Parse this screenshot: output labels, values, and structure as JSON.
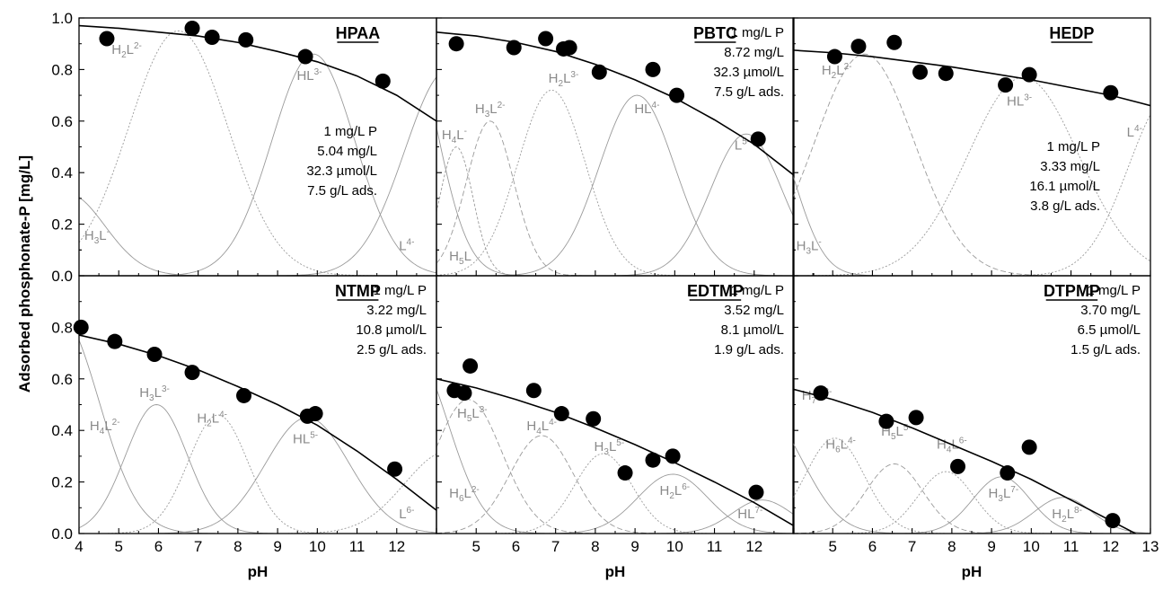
{
  "ylabel": "Adsorbed phosphonate-P [mg/L]",
  "xlabel": "pH",
  "colors": {
    "points": "#000000",
    "fit": "#000000",
    "species": "#9a9a9a",
    "species_label": "#8a8a8a",
    "axes": "#000000"
  },
  "chart_data": [
    {
      "type": "scatter",
      "title": "HPAA",
      "xlim": [
        4,
        13
      ],
      "ylim": [
        0,
        1.0
      ],
      "xticks": [
        "4",
        "5",
        "6",
        "7",
        "8",
        "9",
        "10",
        "11",
        "12"
      ],
      "yticks": [
        "0.0",
        "0.2",
        "0.4",
        "0.6",
        "0.8",
        "1.0"
      ],
      "info_lines": [
        "1 mg/L P",
        "5.04 mg/L",
        "32.3 µmol/L",
        "7.5 g/L ads."
      ],
      "series": [
        {
          "x": [
            4.7,
            6.85,
            7.35,
            8.2,
            9.7,
            11.65
          ],
          "y": [
            0.92,
            0.96,
            0.925,
            0.915,
            0.85,
            0.755
          ]
        }
      ],
      "fit": {
        "x": [
          4,
          5,
          6,
          7,
          8,
          9,
          10,
          11,
          12,
          13
        ],
        "y": [
          0.97,
          0.96,
          0.945,
          0.93,
          0.905,
          0.87,
          0.83,
          0.775,
          0.7,
          0.6
        ]
      },
      "species": [
        {
          "label": [
            "H",
            "3",
            "L",
            "-"
          ],
          "center": 3.7,
          "width": 0.95,
          "peak": 0.32,
          "dash": "",
          "label_at": [
            4.45,
            0.14
          ]
        },
        {
          "label": [
            "H",
            "2",
            "L",
            "2-"
          ],
          "center": 6.5,
          "width": 1.25,
          "peak": 0.95,
          "dash": "2,2",
          "label_at": [
            5.2,
            0.86
          ]
        },
        {
          "label": [
            "HL",
            "",
            "",
            "3-"
          ],
          "center": 9.9,
          "width": 1.05,
          "peak": 0.86,
          "dash": "",
          "label_at": [
            9.8,
            0.76
          ]
        },
        {
          "label": [
            "L",
            "",
            "",
            "4-"
          ],
          "center": 13.3,
          "width": 1.1,
          "peak": 0.8,
          "dash": "",
          "label_at": [
            12.25,
            0.1
          ]
        }
      ]
    },
    {
      "type": "scatter",
      "title": "PBTC",
      "xlim": [
        4,
        13
      ],
      "ylim": [
        0,
        1.0
      ],
      "xticks": [
        "5",
        "6",
        "7",
        "8",
        "9",
        "10",
        "11",
        "12"
      ],
      "yticks": [],
      "info_lines": [
        "1 mg/L P",
        "8.72 mg/L",
        "32.3 µmol/L",
        "7.5 g/L ads."
      ],
      "series": [
        {
          "x": [
            4.5,
            5.95,
            6.75,
            7.2,
            7.35,
            8.1,
            9.45,
            10.05,
            12.1
          ],
          "y": [
            0.9,
            0.885,
            0.92,
            0.88,
            0.885,
            0.79,
            0.8,
            0.7,
            0.53
          ]
        }
      ],
      "fit": {
        "x": [
          4,
          5,
          6,
          7,
          8,
          9,
          10,
          11,
          12,
          13
        ],
        "y": [
          0.945,
          0.93,
          0.905,
          0.87,
          0.82,
          0.76,
          0.69,
          0.605,
          0.51,
          0.39
        ]
      },
      "species": [
        {
          "label": [
            "H",
            "5",
            "L",
            ""
          ],
          "center": 3.2,
          "width": 0.8,
          "peak": 0.95,
          "dash": "",
          "label_at": [
            4.6,
            0.06
          ]
        },
        {
          "label": [
            "H",
            "4",
            "L",
            "-"
          ],
          "center": 4.5,
          "width": 0.42,
          "peak": 0.5,
          "dash": "3,2",
          "label_at": [
            4.45,
            0.53
          ]
        },
        {
          "label": [
            "H",
            "3",
            "L",
            "2-"
          ],
          "center": 5.35,
          "width": 0.6,
          "peak": 0.6,
          "dash": "6,3",
          "label_at": [
            5.35,
            0.63
          ]
        },
        {
          "label": [
            "H",
            "2",
            "L",
            "3-"
          ],
          "center": 6.9,
          "width": 0.85,
          "peak": 0.72,
          "dash": "2,2",
          "label_at": [
            7.2,
            0.75
          ]
        },
        {
          "label": [
            "HL",
            "",
            "",
            "4-"
          ],
          "center": 9.05,
          "width": 0.95,
          "peak": 0.7,
          "dash": "",
          "label_at": [
            9.3,
            0.63
          ]
        },
        {
          "label": [
            "L",
            "",
            "",
            "5-"
          ],
          "center": 11.8,
          "width": 0.9,
          "peak": 0.55,
          "dash": "",
          "label_at": [
            11.7,
            0.49
          ]
        }
      ]
    },
    {
      "type": "scatter",
      "title": "HEDP",
      "xlim": [
        4,
        13
      ],
      "ylim": [
        0,
        1.0
      ],
      "xticks": [
        "5",
        "6",
        "7",
        "8",
        "9",
        "10",
        "11",
        "12",
        "13"
      ],
      "yticks": [],
      "info_lines": [
        "1 mg/L P",
        "3.33 mg/L",
        "16.1 µmol/L",
        "3.8 g/L ads."
      ],
      "series": [
        {
          "x": [
            5.05,
            5.65,
            6.55,
            7.2,
            7.85,
            9.35,
            9.95,
            12.0
          ],
          "y": [
            0.85,
            0.89,
            0.905,
            0.79,
            0.785,
            0.74,
            0.78,
            0.71
          ]
        }
      ],
      "fit": {
        "x": [
          4,
          5,
          6,
          7,
          8,
          9,
          10,
          11,
          12,
          13
        ],
        "y": [
          0.875,
          0.865,
          0.85,
          0.83,
          0.81,
          0.785,
          0.76,
          0.73,
          0.7,
          0.66
        ]
      },
      "species": [
        {
          "label": [
            "H",
            "3",
            "L",
            "-"
          ],
          "center": 3.3,
          "width": 0.75,
          "peak": 0.6,
          "dash": "",
          "label_at": [
            4.4,
            0.1
          ]
        },
        {
          "label": [
            "H",
            "2",
            "L",
            "2-"
          ],
          "center": 5.8,
          "width": 1.25,
          "peak": 0.86,
          "dash": "6,3",
          "label_at": [
            5.1,
            0.78
          ]
        },
        {
          "label": [
            "HL",
            "",
            "",
            "3-"
          ],
          "center": 9.8,
          "width": 1.4,
          "peak": 0.77,
          "dash": "2,2",
          "label_at": [
            9.7,
            0.66
          ]
        },
        {
          "label": [
            "L",
            "",
            "",
            "4-"
          ],
          "center": 13.5,
          "width": 1.05,
          "peak": 0.7,
          "dash": "2,2",
          "label_at": [
            12.6,
            0.54
          ]
        }
      ]
    },
    {
      "type": "scatter",
      "title": "NTMP",
      "xlim": [
        4,
        13
      ],
      "ylim": [
        0,
        1.0
      ],
      "xticks": [
        "4",
        "5",
        "6",
        "7",
        "8",
        "9",
        "10",
        "11",
        "12"
      ],
      "yticks": [
        "0.0",
        "0.2",
        "0.4",
        "0.6",
        "0.8"
      ],
      "info_lines": [
        "1 mg/L P",
        "3.22 mg/L",
        "10.8 µmol/L",
        "2.5 g/L ads."
      ],
      "series": [
        {
          "x": [
            4.05,
            4.9,
            5.9,
            6.85,
            8.15,
            9.75,
            9.95,
            11.95
          ],
          "y": [
            0.8,
            0.745,
            0.695,
            0.625,
            0.535,
            0.455,
            0.465,
            0.25
          ]
        }
      ],
      "fit": {
        "x": [
          4,
          5,
          6,
          7,
          8,
          9,
          10,
          11,
          12,
          13
        ],
        "y": [
          0.77,
          0.735,
          0.69,
          0.635,
          0.57,
          0.5,
          0.42,
          0.32,
          0.21,
          0.09
        ]
      },
      "species": [
        {
          "label": [
            "H",
            "4",
            "L",
            "2-"
          ],
          "center": 3.5,
          "width": 1.0,
          "peak": 0.85,
          "dash": "",
          "label_at": [
            4.65,
            0.4
          ]
        },
        {
          "label": [
            "H",
            "3",
            "L",
            "3-"
          ],
          "center": 5.95,
          "width": 0.78,
          "peak": 0.5,
          "dash": "",
          "label_at": [
            5.9,
            0.53
          ]
        },
        {
          "label": [
            "H",
            "2",
            "L",
            "4-"
          ],
          "center": 7.5,
          "width": 0.75,
          "peak": 0.46,
          "dash": "2,2",
          "label_at": [
            7.35,
            0.43
          ]
        },
        {
          "label": [
            "HL",
            "",
            "",
            "5-"
          ],
          "center": 9.75,
          "width": 1.05,
          "peak": 0.45,
          "dash": "",
          "label_at": [
            9.7,
            0.35
          ]
        },
        {
          "label": [
            "L",
            "",
            "",
            "6-"
          ],
          "center": 13.3,
          "width": 1.1,
          "peak": 0.32,
          "dash": "2,2",
          "label_at": [
            12.25,
            0.06
          ]
        }
      ]
    },
    {
      "type": "scatter",
      "title": "EDTMP",
      "xlim": [
        4,
        13
      ],
      "ylim": [
        0,
        1.0
      ],
      "xticks": [
        "5",
        "6",
        "7",
        "8",
        "9",
        "10",
        "11",
        "12"
      ],
      "yticks": [],
      "info_lines": [
        "1 mg/L P",
        "3.52 mg/L",
        "8.1 µmol/L",
        "1.9 g/L ads."
      ],
      "series": [
        {
          "x": [
            4.45,
            4.7,
            4.85,
            6.45,
            7.15,
            7.95,
            8.75,
            9.45,
            9.95,
            12.05
          ],
          "y": [
            0.555,
            0.545,
            0.65,
            0.555,
            0.465,
            0.445,
            0.235,
            0.285,
            0.3,
            0.16
          ]
        }
      ],
      "fit": {
        "x": [
          4,
          5,
          6,
          7,
          8,
          9,
          10,
          11,
          12,
          13
        ],
        "y": [
          0.6,
          0.565,
          0.52,
          0.47,
          0.41,
          0.345,
          0.275,
          0.2,
          0.12,
          0.03
        ]
      },
      "species": [
        {
          "label": [
            "H",
            "6",
            "L",
            "2-"
          ],
          "center": 3.4,
          "width": 0.9,
          "peak": 0.7,
          "dash": "",
          "label_at": [
            4.7,
            0.14
          ]
        },
        {
          "label": [
            "H",
            "5",
            "L",
            "3-"
          ],
          "center": 4.8,
          "width": 0.85,
          "peak": 0.52,
          "dash": "6,3",
          "label_at": [
            4.9,
            0.45
          ]
        },
        {
          "label": [
            "H",
            "4",
            "L",
            "4-"
          ],
          "center": 6.65,
          "width": 0.8,
          "peak": 0.38,
          "dash": "6,3",
          "label_at": [
            6.65,
            0.4
          ]
        },
        {
          "label": [
            "H",
            "3",
            "L",
            "5-"
          ],
          "center": 8.2,
          "width": 0.72,
          "peak": 0.31,
          "dash": "2,2",
          "label_at": [
            8.35,
            0.32
          ]
        },
        {
          "label": [
            "H",
            "2",
            "L",
            "6-"
          ],
          "center": 9.95,
          "width": 0.88,
          "peak": 0.23,
          "dash": "",
          "label_at": [
            10.0,
            0.15
          ]
        },
        {
          "label": [
            "HL",
            "",
            "",
            "7-"
          ],
          "center": 12.2,
          "width": 0.75,
          "peak": 0.13,
          "dash": "",
          "label_at": [
            11.9,
            0.06
          ]
        }
      ]
    },
    {
      "type": "scatter",
      "title": "DTPMP",
      "xlim": [
        4,
        13
      ],
      "ylim": [
        0,
        1.0
      ],
      "xticks": [
        "5",
        "6",
        "7",
        "8",
        "9",
        "10",
        "11",
        "12",
        "13"
      ],
      "yticks": [],
      "info_lines": [
        "1 mg/L P",
        "3.70 mg/L",
        "6.5 µmol/L",
        "1.5 g/L ads."
      ],
      "series": [
        {
          "x": [
            4.7,
            6.35,
            7.1,
            8.15,
            9.4,
            9.95,
            12.05
          ],
          "y": [
            0.545,
            0.435,
            0.45,
            0.26,
            0.235,
            0.335,
            0.05
          ]
        }
      ],
      "fit": {
        "x": [
          4,
          5,
          6,
          7,
          8,
          9,
          10,
          11,
          12,
          13
        ],
        "y": [
          0.56,
          0.52,
          0.47,
          0.41,
          0.345,
          0.28,
          0.21,
          0.13,
          0.05,
          -0.03
        ]
      },
      "species": [
        {
          "label": [
            "H",
            "7",
            "L",
            "3-"
          ],
          "center": 3.3,
          "width": 0.95,
          "peak": 0.46,
          "dash": "",
          "label_at": [
            4.6,
            0.52
          ]
        },
        {
          "label": [
            "H",
            "6",
            "L",
            "4-"
          ],
          "center": 5.05,
          "width": 0.75,
          "peak": 0.37,
          "dash": "2,2",
          "label_at": [
            5.2,
            0.33
          ]
        },
        {
          "label": [
            "H",
            "5",
            "L",
            "5-"
          ],
          "center": 6.55,
          "width": 0.72,
          "peak": 0.27,
          "dash": "6,3",
          "label_at": [
            6.6,
            0.38
          ]
        },
        {
          "label": [
            "H",
            "4",
            "L",
            "6-"
          ],
          "center": 7.85,
          "width": 0.7,
          "peak": 0.24,
          "dash": "2,2",
          "label_at": [
            8.0,
            0.33
          ]
        },
        {
          "label": [
            "H",
            "3",
            "L",
            "7-"
          ],
          "center": 9.25,
          "width": 0.72,
          "peak": 0.22,
          "dash": "",
          "label_at": [
            9.3,
            0.14
          ]
        },
        {
          "label": [
            "H",
            "2",
            "L",
            "8-"
          ],
          "center": 10.8,
          "width": 0.72,
          "peak": 0.14,
          "dash": "",
          "label_at": [
            10.9,
            0.06
          ]
        }
      ]
    }
  ]
}
